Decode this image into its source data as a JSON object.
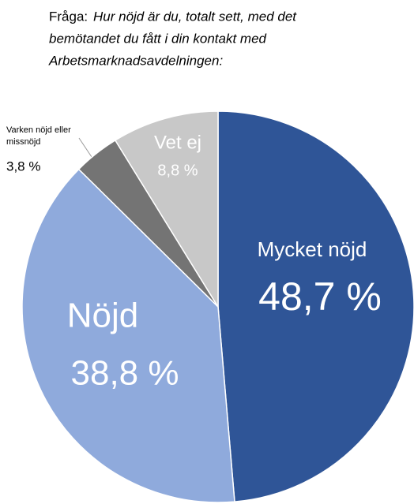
{
  "chart_data": {
    "type": "pie",
    "question_label": "Fråga:",
    "title": [
      "Hur nöjd är du, totalt sett, med det",
      "bemötandet du fått i din kontakt med",
      "Arbetsmarknadsavdelningen:"
    ],
    "categories": [
      "Mycket nöjd",
      "Nöjd",
      "Varken nöjd eller missnöjd",
      "Vet ej"
    ],
    "values": [
      48.7,
      38.8,
      3.8,
      8.8
    ],
    "value_labels": [
      "48,7 %",
      "38,8 %",
      "3,8 %",
      "8,8 %"
    ],
    "colors": [
      "#2f5597",
      "#8faadc",
      "#747474",
      "#c8c8c8"
    ]
  }
}
